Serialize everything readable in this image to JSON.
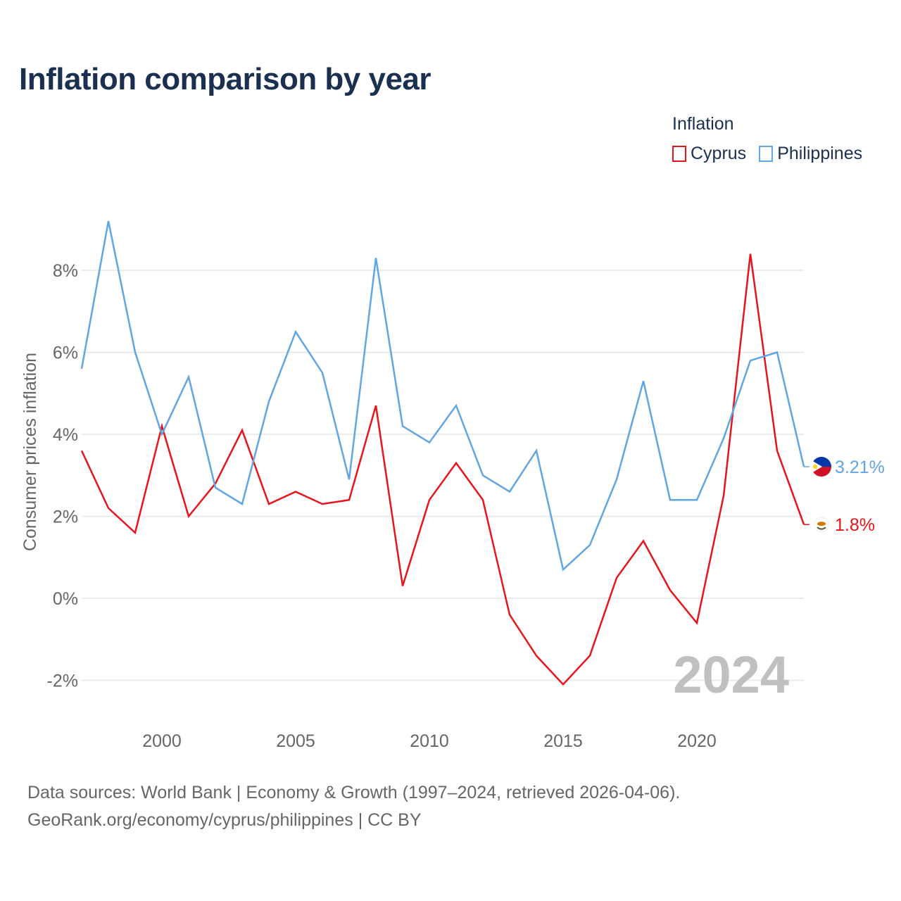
{
  "title": "Inflation comparison by year",
  "legend": {
    "title": "Inflation",
    "items": [
      {
        "label": "Cyprus",
        "color": "#e8141c"
      },
      {
        "label": "Philippines",
        "color": "#60a6e4"
      }
    ]
  },
  "chart_data": {
    "type": "line",
    "title": "Inflation comparison by year",
    "xlabel": "",
    "ylabel": "Consumer prices inflation",
    "xlim": [
      1997,
      2024
    ],
    "ylim": [
      -3,
      10
    ],
    "x_ticks": [
      2000,
      2005,
      2010,
      2015,
      2020
    ],
    "x_tick_labels": [
      "2000",
      "2005",
      "2010",
      "2015",
      "2020"
    ],
    "y_ticks": [
      -2,
      0,
      2,
      4,
      6,
      8
    ],
    "y_tick_labels": [
      "-2%",
      "0%",
      "2%",
      "4%",
      "6%",
      "8%"
    ],
    "grid": true,
    "x": [
      1997,
      1998,
      1999,
      2000,
      2001,
      2002,
      2003,
      2004,
      2005,
      2006,
      2007,
      2008,
      2009,
      2010,
      2011,
      2012,
      2013,
      2014,
      2015,
      2016,
      2017,
      2018,
      2019,
      2020,
      2021,
      2022,
      2023,
      2024
    ],
    "series": [
      {
        "name": "Cyprus",
        "color": "#e8141c",
        "values": [
          3.6,
          2.2,
          1.6,
          4.2,
          2.0,
          2.8,
          4.1,
          2.3,
          2.6,
          2.3,
          2.4,
          4.7,
          0.3,
          2.4,
          3.3,
          2.4,
          -0.4,
          -1.4,
          -2.1,
          -1.4,
          0.5,
          1.4,
          0.2,
          -0.6,
          2.5,
          8.4,
          3.6,
          1.8
        ],
        "end_label": "1.8%"
      },
      {
        "name": "Philippines",
        "color": "#60a6e4",
        "values": [
          5.6,
          9.2,
          6.0,
          4.0,
          5.4,
          2.7,
          2.3,
          4.8,
          6.5,
          5.5,
          2.9,
          8.3,
          4.2,
          3.8,
          4.7,
          3.0,
          2.6,
          3.6,
          0.7,
          1.3,
          2.9,
          5.3,
          2.4,
          2.4,
          3.9,
          5.8,
          6.0,
          3.21
        ],
        "end_label": "3.21%"
      }
    ],
    "annotation": "2024"
  },
  "footer": {
    "line1": "Data sources: World Bank | Economy & Growth (1997–2024, retrieved 2026-04-06).",
    "line2": "GeoRank.org/economy/cyprus/philippines | CC BY"
  }
}
